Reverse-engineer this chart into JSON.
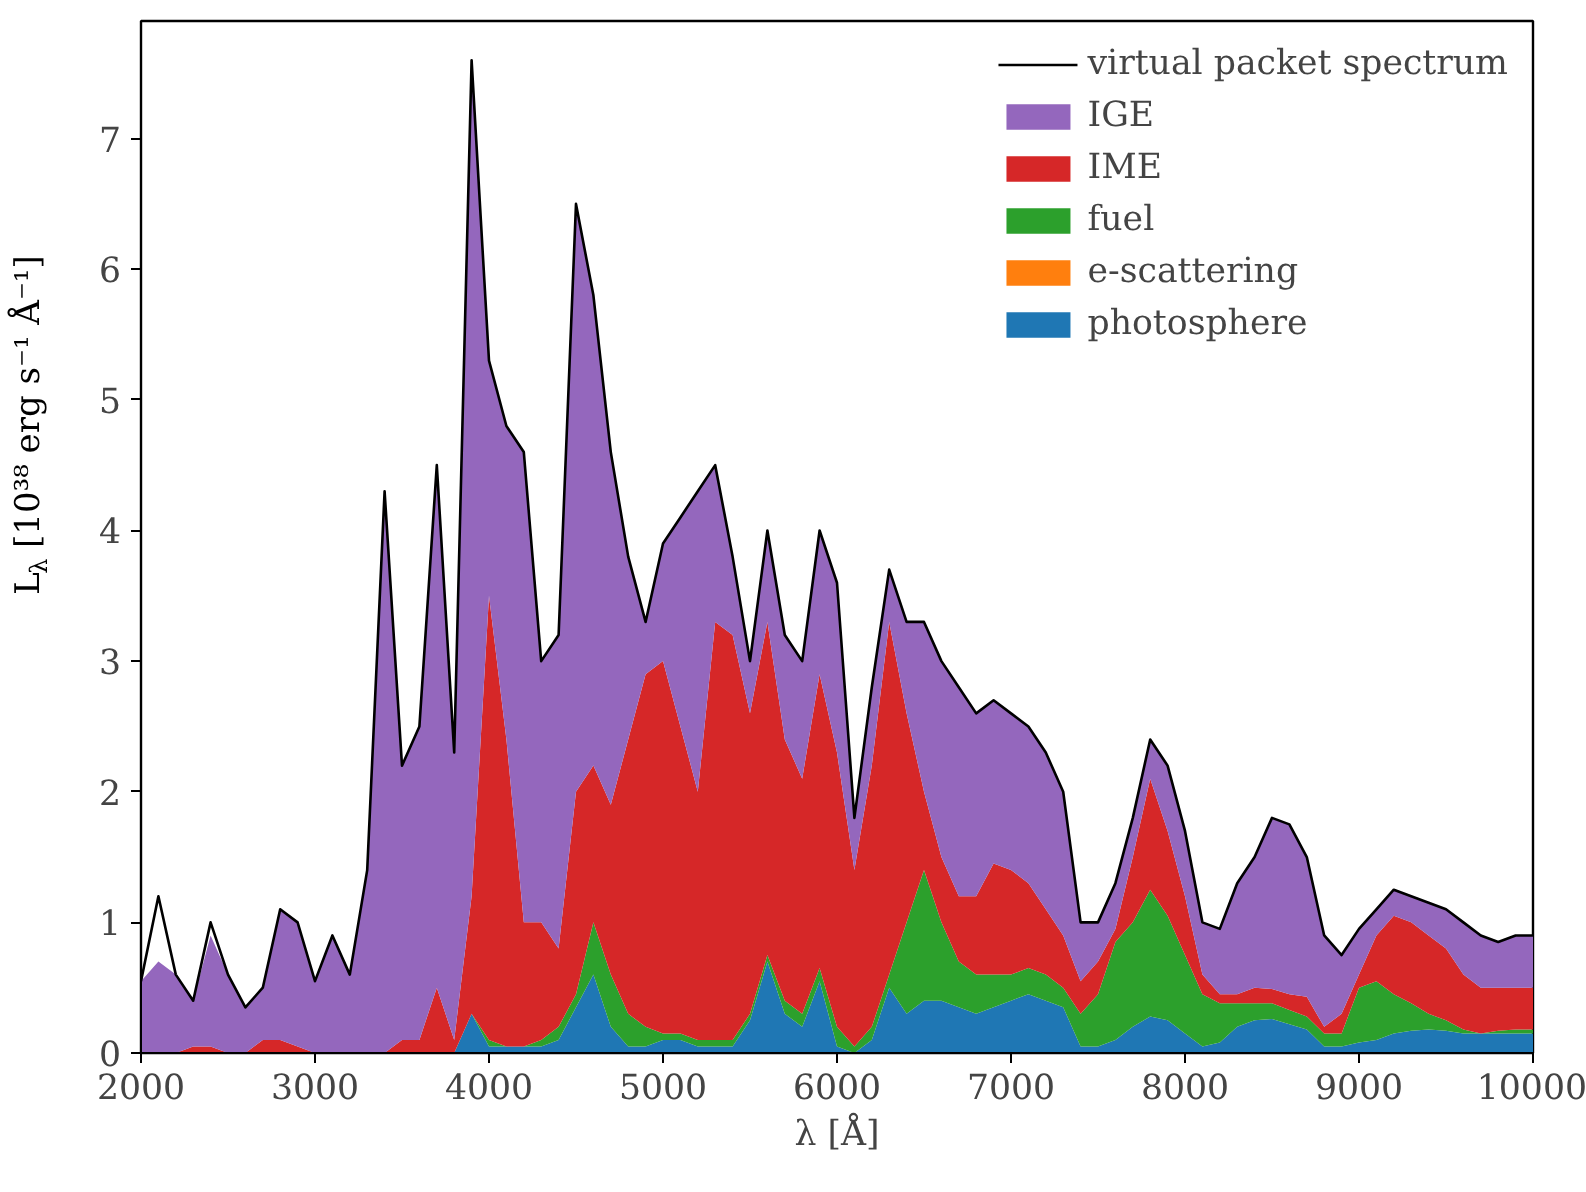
{
  "chart_data": {
    "type": "area",
    "stacked": true,
    "xlabel": "λ [Å]",
    "ylabel": "L$_{λ}$ [10³⁸ erg s⁻¹ Å⁻¹]",
    "xlim": [
      2000,
      10000
    ],
    "ylim": [
      0,
      7.9
    ],
    "xticks": [
      2000,
      3000,
      4000,
      5000,
      6000,
      7000,
      8000,
      9000,
      10000
    ],
    "yticks": [
      0,
      1,
      2,
      3,
      4,
      5,
      6,
      7
    ],
    "grid": false,
    "legend": "top right",
    "x": [
      2000,
      2100,
      2200,
      2300,
      2400,
      2500,
      2600,
      2700,
      2800,
      2900,
      3000,
      3100,
      3200,
      3300,
      3400,
      3500,
      3600,
      3700,
      3800,
      3900,
      4000,
      4100,
      4200,
      4300,
      4400,
      4500,
      4600,
      4700,
      4800,
      4900,
      5000,
      5100,
      5200,
      5300,
      5400,
      5500,
      5600,
      5700,
      5800,
      5900,
      6000,
      6100,
      6200,
      6300,
      6400,
      6500,
      6600,
      6700,
      6800,
      6900,
      7000,
      7100,
      7200,
      7300,
      7400,
      7500,
      7600,
      7700,
      7800,
      7900,
      8000,
      8100,
      8200,
      8300,
      8400,
      8500,
      8600,
      8700,
      8800,
      8900,
      9000,
      9100,
      9200,
      9300,
      9400,
      9500,
      9600,
      9700,
      9800,
      9900,
      10000
    ],
    "series": [
      {
        "name": "photosphere",
        "color": "#1f77b4",
        "values": [
          0,
          0,
          0,
          0,
          0,
          0,
          0,
          0,
          0,
          0,
          0,
          0,
          0,
          0,
          0,
          0,
          0,
          0,
          0,
          0.3,
          0.05,
          0.05,
          0.05,
          0.05,
          0.1,
          0.35,
          0.6,
          0.2,
          0.05,
          0.05,
          0.1,
          0.1,
          0.05,
          0.05,
          0.05,
          0.25,
          0.7,
          0.3,
          0.2,
          0.55,
          0.05,
          0,
          0.1,
          0.5,
          0.3,
          0.4,
          0.4,
          0.35,
          0.3,
          0.35,
          0.4,
          0.45,
          0.4,
          0.35,
          0.05,
          0.05,
          0.1,
          0.2,
          0.28,
          0.25,
          0.15,
          0.05,
          0.08,
          0.2,
          0.25,
          0.26,
          0.22,
          0.18,
          0.05,
          0.05,
          0.08,
          0.1,
          0.15,
          0.17,
          0.18,
          0.17,
          0.15,
          0.15,
          0.15,
          0.15,
          0.15
        ]
      },
      {
        "name": "e-scattering",
        "color": "#ff7f0e",
        "values": [
          null,
          null,
          null,
          null,
          null,
          null,
          null,
          null,
          null,
          null,
          null,
          null,
          null,
          null,
          null,
          null,
          null,
          null,
          null,
          null,
          null,
          null,
          null,
          null,
          null,
          null,
          null,
          null,
          null,
          null,
          null,
          null,
          null,
          null,
          null,
          null,
          null,
          null,
          null,
          null,
          null,
          null,
          null,
          null,
          null,
          null,
          null,
          null,
          null,
          null,
          null,
          null,
          null,
          null,
          null,
          null,
          null,
          null,
          null,
          null,
          null,
          null,
          null,
          null,
          null,
          null,
          null,
          null,
          null,
          null,
          null,
          null,
          null,
          null,
          null,
          null,
          null,
          null,
          null,
          null,
          null
        ]
      },
      {
        "name": "fuel",
        "color": "#2ca02c",
        "values": [
          0,
          0,
          0,
          0,
          0,
          0,
          0,
          0,
          0,
          0,
          0,
          0,
          0,
          0,
          0,
          0,
          0,
          0,
          0,
          0,
          0.05,
          0,
          0,
          0.05,
          0.1,
          0.1,
          0.4,
          0.4,
          0.25,
          0.15,
          0.05,
          0.05,
          0.05,
          0.05,
          0.05,
          0.05,
          0.05,
          0.1,
          0.1,
          0.1,
          0.15,
          0.05,
          0.1,
          0.1,
          0.7,
          1.0,
          0.6,
          0.35,
          0.3,
          0.25,
          0.2,
          0.2,
          0.2,
          0.15,
          0.25,
          0.4,
          0.75,
          0.8,
          0.97,
          0.8,
          0.6,
          0.4,
          0.3,
          0.18,
          0.13,
          0.12,
          0.11,
          0.1,
          0.1,
          0.1,
          0.42,
          0.45,
          0.3,
          0.21,
          0.12,
          0.08,
          0.03,
          0,
          0.02,
          0.03,
          0.03
        ]
      },
      {
        "name": "IME",
        "color": "#d62728",
        "values": [
          0,
          0,
          0,
          0.05,
          0.05,
          0,
          0,
          0.1,
          0.1,
          0.05,
          0,
          0,
          0,
          0,
          0,
          0.1,
          0.1,
          0.5,
          0.1,
          0.9,
          3.4,
          2.35,
          0.95,
          0.9,
          0.6,
          1.55,
          1.2,
          1.3,
          2.1,
          2.7,
          2.85,
          2.35,
          1.9,
          3.2,
          3.1,
          2.3,
          2.55,
          2.0,
          1.8,
          2.25,
          2.1,
          1.35,
          2.0,
          2.7,
          1.6,
          0.6,
          0.5,
          0.5,
          0.6,
          0.85,
          0.8,
          0.65,
          0.5,
          0.4,
          0.25,
          0.25,
          0.1,
          0.5,
          0.85,
          0.65,
          0.45,
          0.15,
          0.07,
          0.07,
          0.12,
          0.11,
          0.12,
          0.15,
          0.05,
          0.15,
          0.1,
          0.35,
          0.6,
          0.62,
          0.6,
          0.55,
          0.42,
          0.35,
          0.33,
          0.32,
          0.32
        ]
      },
      {
        "name": "IGE",
        "color": "#9467bd",
        "values": [
          0.55,
          0.7,
          0.6,
          0.35,
          0.85,
          0.6,
          0.35,
          0.4,
          1.0,
          0.95,
          0.55,
          0.9,
          0.6,
          1.4,
          4.3,
          2.1,
          2.4,
          4.0,
          2.2,
          6.4,
          1.8,
          2.4,
          3.6,
          2.0,
          2.4,
          4.5,
          3.6,
          2.7,
          1.4,
          0.4,
          0.9,
          1.6,
          2.3,
          1.2,
          0.6,
          0.4,
          0.7,
          0.8,
          0.9,
          1.1,
          1.3,
          0.4,
          0.6,
          0.4,
          0.7,
          1.3,
          1.5,
          1.6,
          1.4,
          1.25,
          1.2,
          1.2,
          1.2,
          1.1,
          0.45,
          0.3,
          0.35,
          0.3,
          0.3,
          0.5,
          0.5,
          0.4,
          0.5,
          0.85,
          1.0,
          1.31,
          1.3,
          1.07,
          0.7,
          0.45,
          0.35,
          0.2,
          0.2,
          0.2,
          0.25,
          0.3,
          0.4,
          0.4,
          0.35,
          0.4,
          0.4
        ]
      },
      {
        "name": "virtual packet spectrum",
        "type": "line",
        "color": "#000000",
        "values": [
          0.55,
          1.2,
          0.6,
          0.4,
          1.0,
          0.6,
          0.35,
          0.5,
          1.1,
          1.0,
          0.55,
          0.9,
          0.6,
          1.4,
          4.3,
          2.2,
          2.5,
          4.5,
          2.3,
          7.6,
          5.3,
          4.8,
          4.6,
          3.0,
          3.2,
          6.5,
          5.8,
          4.6,
          3.8,
          3.3,
          3.9,
          4.1,
          4.3,
          4.5,
          3.8,
          3.0,
          4.0,
          3.2,
          3.0,
          4.0,
          3.6,
          1.8,
          2.8,
          3.7,
          3.3,
          3.3,
          3.0,
          2.8,
          2.6,
          2.7,
          2.6,
          2.5,
          2.3,
          2.0,
          1.0,
          1.0,
          1.3,
          1.8,
          2.4,
          2.2,
          1.7,
          1.0,
          0.95,
          1.3,
          1.5,
          1.8,
          1.75,
          1.5,
          0.9,
          0.75,
          0.95,
          1.1,
          1.25,
          1.2,
          1.15,
          1.1,
          1.0,
          0.9,
          0.85,
          0.9,
          0.9
        ]
      }
    ]
  }
}
